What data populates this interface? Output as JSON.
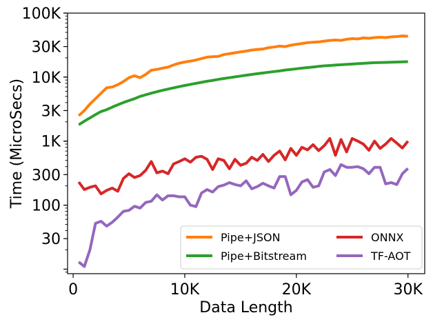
{
  "chart_data": {
    "type": "line",
    "title": "",
    "xlabel": "Data Length",
    "ylabel": "Time (MicroSecs)",
    "yscale": "log",
    "xlim": [
      -500,
      31500
    ],
    "ylim": [
      8.5,
      100000
    ],
    "xticks": [
      {
        "value": 0,
        "label": "0"
      },
      {
        "value": 10000,
        "label": "10K"
      },
      {
        "value": 20000,
        "label": "20K"
      },
      {
        "value": 30000,
        "label": "30K"
      }
    ],
    "yticks": [
      {
        "value": 30,
        "label": "30"
      },
      {
        "value": 100,
        "label": "100"
      },
      {
        "value": 300,
        "label": "300"
      },
      {
        "value": 1000,
        "label": "1K"
      },
      {
        "value": 3000,
        "label": "3K"
      },
      {
        "value": 10000,
        "label": "10K"
      },
      {
        "value": 30000,
        "label": "30K"
      },
      {
        "value": 100000,
        "label": "100K"
      }
    ],
    "legend_position": "lower-right",
    "x": [
      500,
      1000,
      1500,
      2000,
      2500,
      3000,
      3500,
      4000,
      4500,
      5000,
      5500,
      6000,
      6500,
      7000,
      7500,
      8000,
      8500,
      9000,
      9500,
      10000,
      10500,
      11000,
      11500,
      12000,
      12500,
      13000,
      13500,
      14000,
      14500,
      15000,
      15500,
      16000,
      16500,
      17000,
      17500,
      18000,
      18500,
      19000,
      19500,
      20000,
      20500,
      21000,
      21500,
      22000,
      22500,
      23000,
      23500,
      24000,
      24500,
      25000,
      25500,
      26000,
      26500,
      27000,
      27500,
      28000,
      28500,
      29000,
      29500,
      30000
    ],
    "series": [
      {
        "name": "Pipe+JSON",
        "color": "#ff7f0e",
        "values": [
          2500,
          3000,
          3800,
          4600,
          5600,
          6800,
          7000,
          7600,
          8500,
          9800,
          10500,
          9800,
          11000,
          12800,
          13200,
          13800,
          14300,
          15500,
          16500,
          17200,
          17800,
          18500,
          19500,
          20500,
          20800,
          21000,
          22500,
          23200,
          24000,
          24800,
          25500,
          26500,
          27000,
          27500,
          28800,
          29500,
          30500,
          30000,
          31500,
          32500,
          33500,
          34500,
          35000,
          35500,
          36500,
          37500,
          38000,
          37500,
          39000,
          40000,
          39500,
          41000,
          40500,
          41500,
          42000,
          41500,
          42500,
          43000,
          44000,
          43500
        ]
      },
      {
        "name": "Pipe+Bitstream",
        "color": "#2ca02c",
        "values": [
          1800,
          2050,
          2300,
          2600,
          2900,
          3100,
          3400,
          3700,
          4000,
          4300,
          4600,
          5000,
          5300,
          5600,
          5900,
          6200,
          6500,
          6800,
          7100,
          7400,
          7700,
          8000,
          8300,
          8600,
          8900,
          9200,
          9500,
          9800,
          10100,
          10400,
          10700,
          11000,
          11300,
          11600,
          11900,
          12200,
          12500,
          12900,
          13200,
          13500,
          13800,
          14100,
          14400,
          14700,
          15000,
          15200,
          15400,
          15600,
          15800,
          16000,
          16200,
          16400,
          16600,
          16800,
          16900,
          17000,
          17100,
          17200,
          17300,
          17400
        ]
      },
      {
        "name": "ONNX",
        "color": "#d62728",
        "values": [
          230,
          175,
          190,
          200,
          150,
          170,
          185,
          165,
          260,
          310,
          270,
          290,
          350,
          480,
          320,
          340,
          310,
          440,
          480,
          530,
          470,
          560,
          580,
          520,
          360,
          530,
          500,
          370,
          520,
          420,
          450,
          560,
          500,
          620,
          480,
          600,
          700,
          510,
          770,
          600,
          800,
          730,
          880,
          710,
          850,
          1100,
          600,
          1060,
          680,
          1100,
          1000,
          900,
          720,
          1000,
          770,
          900,
          1100,
          930,
          780,
          1000
        ]
      },
      {
        "name": "TF-AOT",
        "color": "#9467bd",
        "values": [
          13,
          11,
          20,
          52,
          56,
          47,
          54,
          65,
          80,
          83,
          96,
          90,
          110,
          115,
          145,
          120,
          140,
          140,
          135,
          135,
          100,
          95,
          155,
          175,
          160,
          195,
          205,
          225,
          210,
          200,
          240,
          180,
          195,
          220,
          200,
          185,
          280,
          280,
          145,
          170,
          230,
          250,
          190,
          200,
          330,
          360,
          290,
          430,
          390,
          390,
          400,
          370,
          310,
          390,
          390,
          215,
          225,
          210,
          310,
          375
        ]
      }
    ]
  }
}
